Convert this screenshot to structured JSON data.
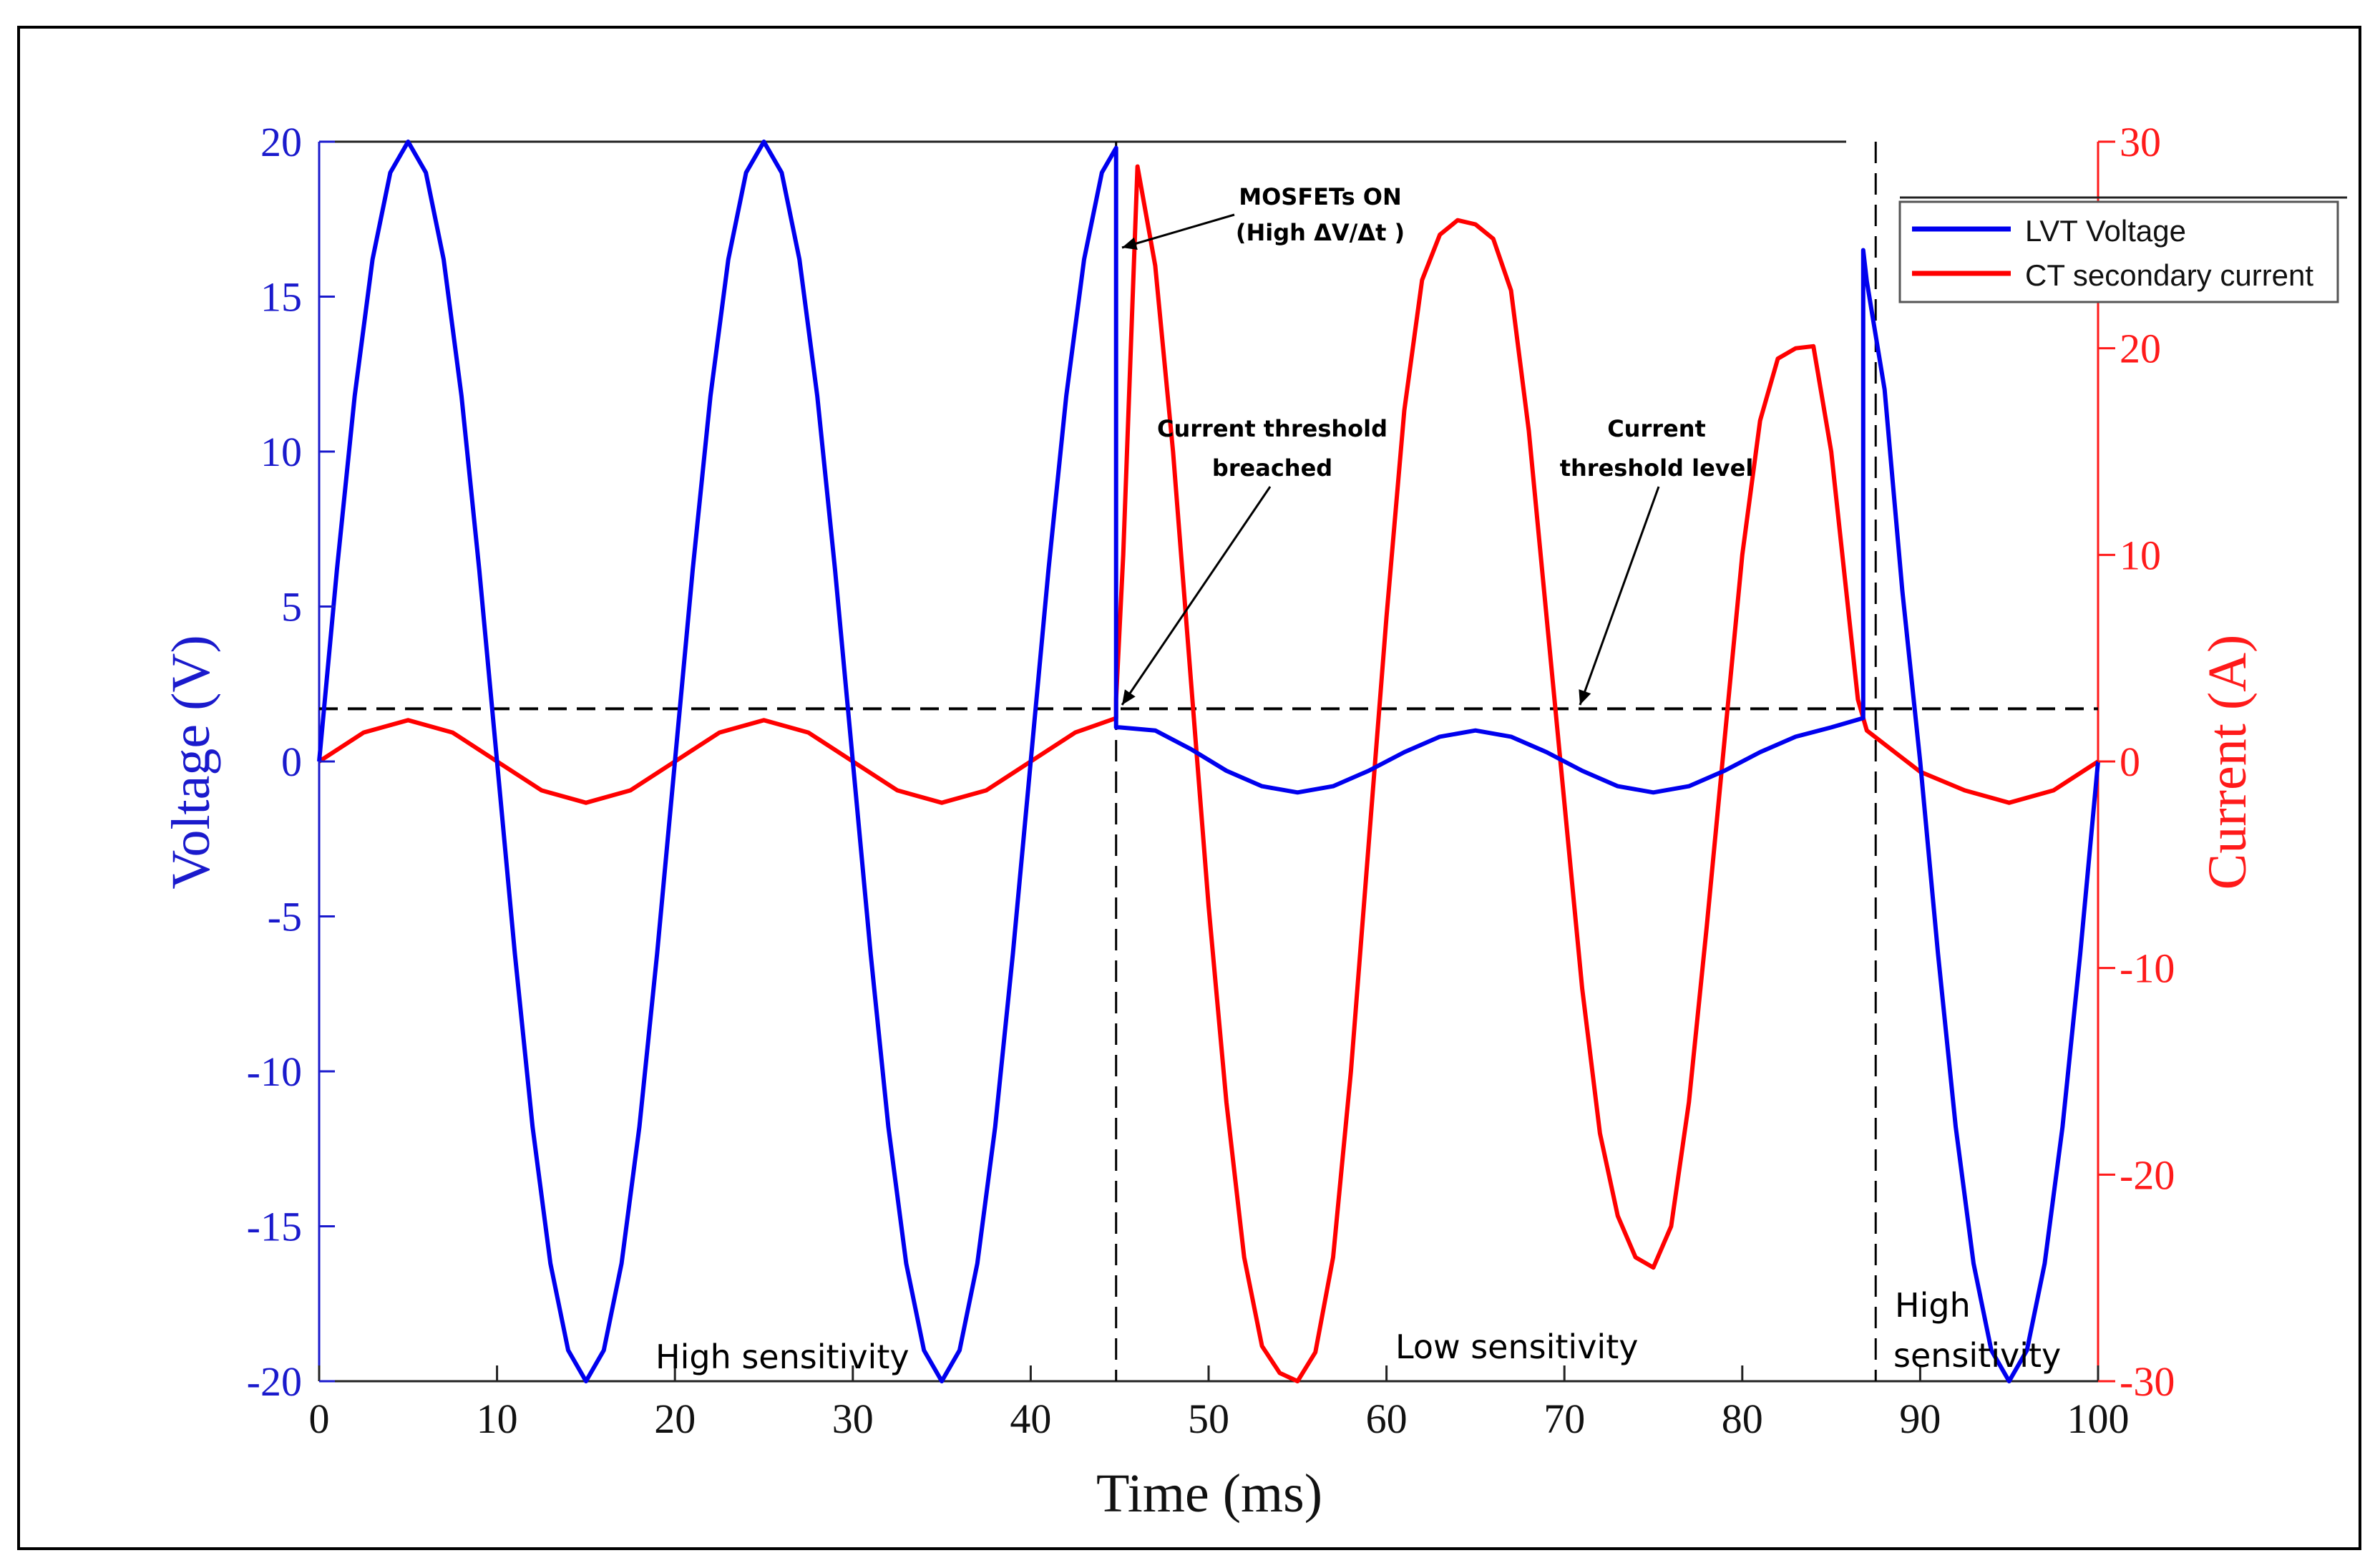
{
  "chart_data": {
    "type": "line",
    "title": "",
    "xlabel": "Time (ms)",
    "ylabel_left": "Voltage (V)",
    "ylabel_right": "Current (A)",
    "xlim": [
      0,
      100
    ],
    "ylim_left": [
      -20,
      20
    ],
    "ylim_right": [
      -30,
      30
    ],
    "x_ticks": [
      "0",
      "10",
      "20",
      "30",
      "40",
      "50",
      "60",
      "70",
      "80",
      "90",
      "100"
    ],
    "y_left_ticks": [
      "20",
      "15",
      "10",
      "5",
      "0",
      "-5",
      "-10",
      "-15",
      "-20"
    ],
    "y_right_ticks": [
      "30",
      "20",
      "10",
      "0",
      "-10",
      "-20",
      "-30"
    ],
    "grid": false,
    "legend_position": "top-right",
    "colors": {
      "voltage": "#0000ee",
      "current": "#ff0000",
      "threshold": "#000000",
      "left_axis": "#1a1acc",
      "right_axis": "#ff1a1a"
    },
    "series": [
      {
        "name": "LVT Voltage",
        "axis": "left",
        "x": [
          0,
          1,
          2,
          3,
          4,
          5,
          6,
          7,
          8,
          9,
          10,
          11,
          12,
          13,
          14,
          15,
          16,
          17,
          18,
          19,
          20,
          21,
          22,
          23,
          24,
          25,
          26,
          27,
          28,
          29,
          30,
          31,
          32,
          33,
          34,
          35,
          36,
          37,
          38,
          39,
          40,
          41,
          42,
          43,
          44,
          44.8,
          44.8,
          45,
          47,
          49,
          51,
          53,
          55,
          57,
          59,
          61,
          63,
          65,
          67,
          69,
          71,
          73,
          75,
          77,
          79,
          81,
          83,
          85,
          86.8,
          86.8,
          87,
          88,
          89,
          90,
          91,
          92,
          93,
          94,
          95,
          96,
          97,
          98,
          99,
          100
        ],
        "values": [
          0,
          6.2,
          11.8,
          16.2,
          19.0,
          20.0,
          19.0,
          16.2,
          11.8,
          6.2,
          0,
          -6.2,
          -11.8,
          -16.2,
          -19.0,
          -20.0,
          -19.0,
          -16.2,
          -11.8,
          -6.2,
          0,
          6.2,
          11.8,
          16.2,
          19.0,
          20.0,
          19.0,
          16.2,
          11.8,
          6.2,
          0,
          -6.2,
          -11.8,
          -16.2,
          -19.0,
          -20.0,
          -19.0,
          -16.2,
          -11.8,
          -6.2,
          0,
          6.2,
          11.8,
          16.2,
          19.0,
          19.8,
          1.1,
          1.1,
          1.0,
          0.4,
          -0.3,
          -0.8,
          -1.0,
          -0.8,
          -0.3,
          0.3,
          0.8,
          1.0,
          0.8,
          0.3,
          -0.3,
          -0.8,
          -1.0,
          -0.8,
          -0.3,
          0.3,
          0.8,
          1.1,
          1.4,
          16.5,
          15.5,
          12.0,
          5.5,
          0,
          -6.2,
          -11.8,
          -16.2,
          -19.0,
          -20.0,
          -19.0,
          -16.2,
          -11.8,
          -6.2,
          0
        ]
      },
      {
        "name": "CT secondary current",
        "axis": "right",
        "x": [
          0,
          2.5,
          5,
          7.5,
          10,
          12.5,
          15,
          17.5,
          20,
          22.5,
          25,
          27.5,
          30,
          32.5,
          35,
          37.5,
          40,
          42.5,
          44.8,
          44.8,
          45.2,
          46,
          47,
          48,
          49,
          50,
          51,
          52,
          53,
          54,
          55,
          56,
          57,
          58,
          59,
          60,
          61,
          62,
          63,
          64,
          65,
          66,
          67,
          68,
          69,
          70,
          71,
          72,
          73,
          74,
          75,
          76,
          77,
          78,
          79,
          80,
          81,
          82,
          83,
          84,
          85,
          86.5,
          87,
          90,
          92.5,
          95,
          97.5,
          100
        ],
        "values": [
          0,
          1.4,
          2.0,
          1.4,
          0,
          -1.4,
          -2.0,
          -1.4,
          0,
          1.4,
          2.0,
          1.4,
          0,
          -1.4,
          -2.0,
          -1.4,
          0,
          1.4,
          2.1,
          3.0,
          10.0,
          28.8,
          24.0,
          15.0,
          4.0,
          -7.0,
          -16.5,
          -24.0,
          -28.3,
          -29.6,
          -30.0,
          -28.6,
          -24.0,
          -15.0,
          -4.0,
          7.0,
          17.0,
          23.3,
          25.5,
          26.2,
          26.0,
          25.3,
          22.8,
          16.0,
          7.0,
          -2.0,
          -11.0,
          -18.0,
          -22.0,
          -24.0,
          -24.5,
          -22.5,
          -16.5,
          -8.0,
          1.0,
          10.0,
          16.5,
          19.5,
          20.0,
          20.1,
          15.0,
          3.0,
          1.5,
          -0.5,
          -1.4,
          -2.0,
          -1.4,
          0
        ]
      },
      {
        "name": "Current threshold level",
        "axis": "left",
        "x": [
          0,
          100
        ],
        "values": [
          1.7,
          1.7
        ]
      }
    ],
    "vertical_markers_ms": [
      44.8,
      87.5
    ],
    "annotations": {
      "mosfets_on": {
        "line1": "MOSFETs ON",
        "line2": "(High ΔV/Δt )"
      },
      "threshold_breached": {
        "line1": "Current threshold",
        "line2": "breached"
      },
      "threshold_level": {
        "line1": "Current",
        "line2": "threshold level"
      },
      "region1": "High sensitivity",
      "region2": "Low sensitivity",
      "region3_line1": "High",
      "region3_line2": "sensitivity"
    }
  }
}
